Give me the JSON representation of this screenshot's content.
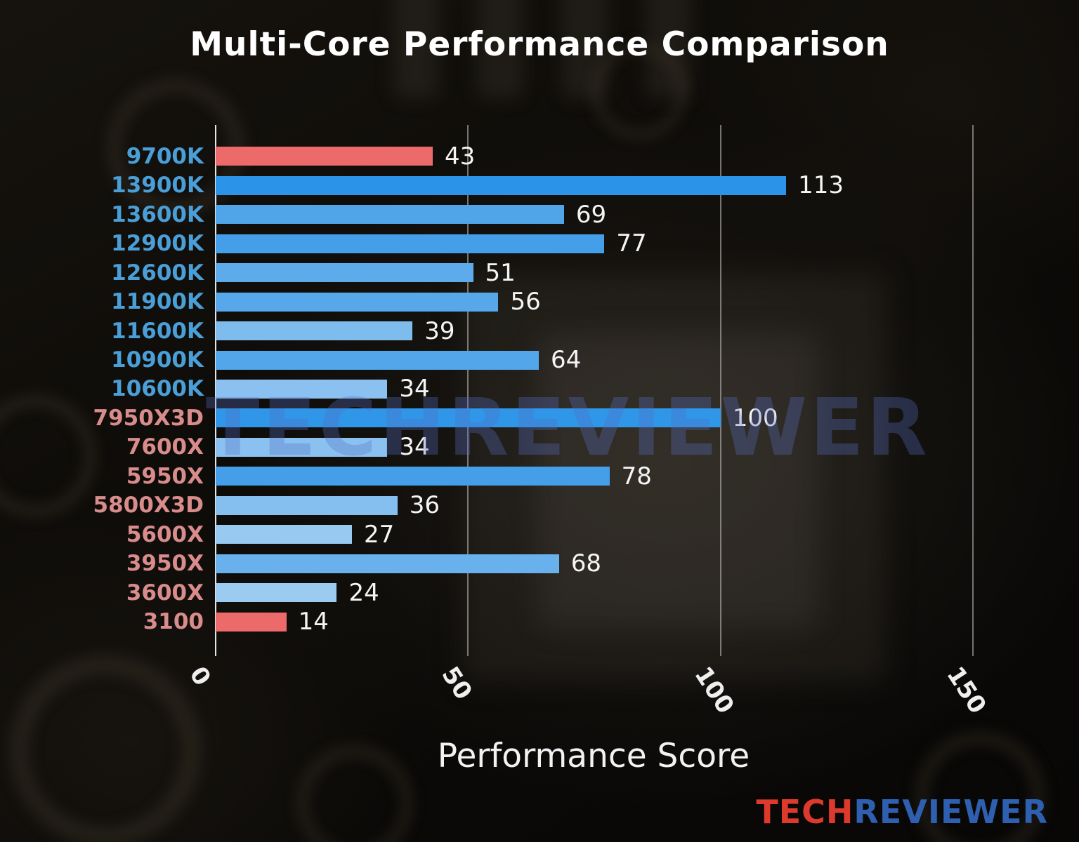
{
  "title": "Multi-Core Performance Comparison",
  "watermark": "TECHREVIEWER",
  "brand": {
    "tech": "TECH",
    "reviewer": "REVIEWER",
    "tech_color": "#dd3a2c",
    "reviewer_color": "#2e5fb0"
  },
  "chart_data": {
    "type": "bar",
    "orientation": "horizontal",
    "title": "Multi-Core Performance Comparison",
    "xlabel": "Performance Score",
    "xlim": [
      0,
      164.6
    ],
    "xticks": [
      0,
      50,
      100,
      150
    ],
    "grid": "vertical gridlines at x ticks",
    "legend": "none",
    "categories": [
      "9700K",
      "13900K",
      "13600K",
      "12900K",
      "12600K",
      "11900K",
      "11600K",
      "10900K",
      "10600K",
      "7950X3D",
      "7600X",
      "5950X",
      "5800X3D",
      "5600X",
      "3950X",
      "3600X",
      "3100"
    ],
    "values": [
      43,
      113,
      69,
      77,
      51,
      56,
      39,
      64,
      34,
      100,
      34,
      78,
      36,
      27,
      68,
      24,
      14
    ],
    "bar_colors": [
      "#ec6a6a",
      "#2b94e8",
      "#50a5e9",
      "#459fe8",
      "#5dabea",
      "#57a8ea",
      "#7fbcee",
      "#52a6e9",
      "#8ac1f0",
      "#2f96e8",
      "#8ac1f0",
      "#449ee8",
      "#85bfef",
      "#97c9f1",
      "#68b1ec",
      "#9ccbf2",
      "#ec6a6a"
    ],
    "label_colors": [
      "#4a9fd8",
      "#4a9fd8",
      "#4a9fd8",
      "#4a9fd8",
      "#4a9fd8",
      "#4a9fd8",
      "#4a9fd8",
      "#4a9fd8",
      "#4a9fd8",
      "#d98c8c",
      "#d98c8c",
      "#d98c8c",
      "#d98c8c",
      "#d98c8c",
      "#d98c8c",
      "#d98c8c",
      "#d98c8c"
    ],
    "highlight_color": "#ec6a6a",
    "value_label_color": "#f5f5f5"
  }
}
